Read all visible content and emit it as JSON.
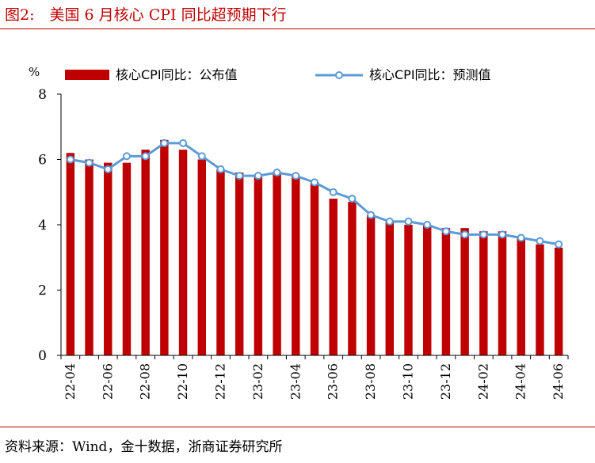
{
  "figure": {
    "title": "图2:　美国 6 月核心 CPI 同比超预期下行",
    "source": "资料来源：Wind，金十数据，浙商证券研究所"
  },
  "colors": {
    "bar": "#c00000",
    "line": "#5b9bd5",
    "accent": "#c00000"
  },
  "chart_data": {
    "type": "bar",
    "unit_label": "%",
    "categories": [
      "22-04",
      "22-05",
      "22-06",
      "22-07",
      "22-08",
      "22-09",
      "22-10",
      "22-11",
      "22-12",
      "23-01",
      "23-02",
      "23-03",
      "23-04",
      "23-05",
      "23-06",
      "23-07",
      "23-08",
      "23-09",
      "23-10",
      "23-11",
      "23-12",
      "24-01",
      "24-02",
      "24-03",
      "24-04",
      "24-05",
      "24-06"
    ],
    "tick_labels": [
      "22-04",
      "22-06",
      "22-08",
      "22-10",
      "22-12",
      "23-02",
      "23-04",
      "23-06",
      "23-08",
      "23-10",
      "23-12",
      "24-02",
      "24-04",
      "24-06"
    ],
    "ylim": [
      0,
      8
    ],
    "yticks": [
      0,
      2,
      4,
      6,
      8
    ],
    "legend_position": "top",
    "series": [
      {
        "name": "核心CPI同比：公布值",
        "type": "bar",
        "values": [
          6.2,
          6.0,
          5.9,
          5.9,
          6.3,
          6.6,
          6.3,
          6.0,
          5.7,
          5.6,
          5.5,
          5.6,
          5.5,
          5.3,
          4.8,
          4.7,
          4.3,
          4.1,
          4.0,
          4.0,
          3.9,
          3.9,
          3.8,
          3.8,
          3.6,
          3.4,
          3.3
        ]
      },
      {
        "name": "核心CPI同比：预测值",
        "type": "line",
        "values": [
          6.0,
          5.9,
          5.7,
          6.1,
          6.1,
          6.5,
          6.5,
          6.1,
          5.7,
          5.5,
          5.5,
          5.6,
          5.5,
          5.3,
          5.0,
          4.8,
          4.3,
          4.1,
          4.1,
          4.0,
          3.8,
          3.7,
          3.7,
          3.7,
          3.6,
          3.5,
          3.4
        ]
      }
    ]
  }
}
